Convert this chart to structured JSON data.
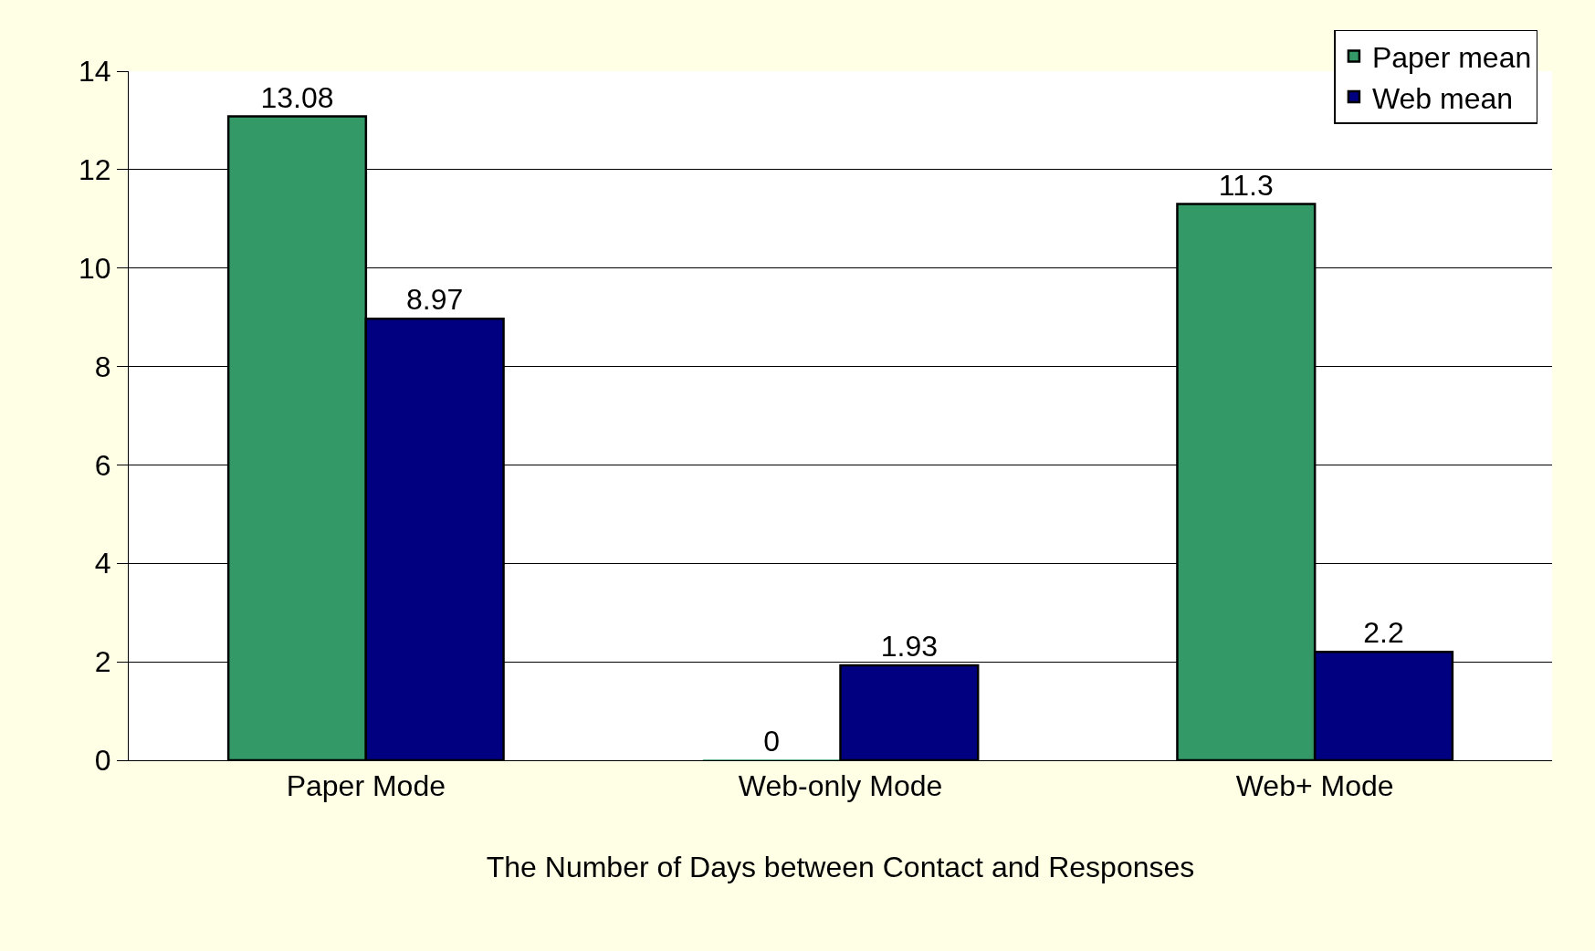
{
  "chart_data": {
    "type": "bar",
    "xlabel": "The Number of Days between Contact and Responses",
    "categories": [
      "Paper Mode",
      "Web-only Mode",
      "Web+ Mode"
    ],
    "series": [
      {
        "name": "Paper mean",
        "color": "#339966",
        "values": [
          13.08,
          0,
          11.3
        ]
      },
      {
        "name": "Web mean",
        "color": "#000080",
        "values": [
          8.97,
          1.93,
          2.2
        ]
      }
    ],
    "ylim": [
      0,
      14
    ],
    "yticks": [
      0,
      2,
      4,
      6,
      8,
      10,
      12,
      14
    ],
    "grid": "y",
    "legend": "top right",
    "data_labels": true
  }
}
